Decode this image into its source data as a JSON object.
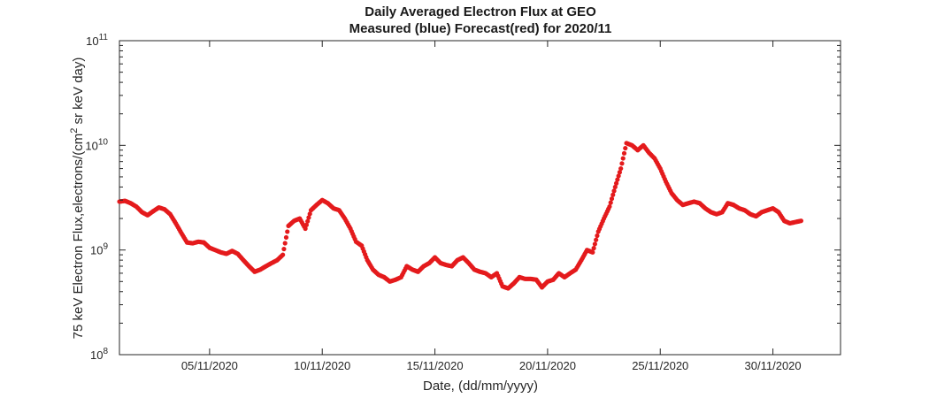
{
  "chart_data": {
    "type": "scatter",
    "title": [
      "Daily Averaged Electron Flux at GEO",
      "Measured (blue) Forecast(red) for 2020/11"
    ],
    "xlabel": "Date, (dd/mm/yyyy)",
    "ylabel": {
      "main": "75 keV Electron Flux,electrons/(cm",
      "superscript": "2",
      "rest": " sr keV day)"
    },
    "x_scale": "date",
    "y_scale": "log",
    "xlim": [
      "2020-11-01",
      "2020-12-03"
    ],
    "ylim": [
      100000000.0,
      100000000000.0
    ],
    "x_tick_labels": [
      "05/11/2020",
      "10/11/2020",
      "15/11/2020",
      "20/11/2020",
      "25/11/2020",
      "30/11/2020"
    ],
    "x_tick_dates": [
      "2020-11-05",
      "2020-11-10",
      "2020-11-15",
      "2020-11-20",
      "2020-11-25",
      "2020-11-30"
    ],
    "y_tick_labels": [
      {
        "base": "10",
        "exp": "8",
        "value": 100000000.0
      },
      {
        "base": "10",
        "exp": "9",
        "value": 1000000000.0
      },
      {
        "base": "10",
        "exp": "10",
        "value": 10000000000.0
      },
      {
        "base": "10",
        "exp": "11",
        "value": 100000000000.0
      }
    ],
    "grid": false,
    "series": [
      {
        "color": "#e41a1c",
        "points": [
          [
            "2020-11-01T00:00",
            2900000000.0
          ],
          [
            "2020-11-01T06:00",
            2950000000.0
          ],
          [
            "2020-11-01T12:00",
            2800000000.0
          ],
          [
            "2020-11-01T18:00",
            2600000000.0
          ],
          [
            "2020-11-02T00:00",
            2300000000.0
          ],
          [
            "2020-11-02T06:00",
            2150000000.0
          ],
          [
            "2020-11-02T12:00",
            2350000000.0
          ],
          [
            "2020-11-02T18:00",
            2550000000.0
          ],
          [
            "2020-11-03T00:00",
            2450000000.0
          ],
          [
            "2020-11-03T06:00",
            2200000000.0
          ],
          [
            "2020-11-03T12:00",
            1800000000.0
          ],
          [
            "2020-11-03T18:00",
            1450000000.0
          ],
          [
            "2020-11-04T00:00",
            1180000000.0
          ],
          [
            "2020-11-04T06:00",
            1160000000.0
          ],
          [
            "2020-11-04T12:00",
            1200000000.0
          ],
          [
            "2020-11-04T18:00",
            1180000000.0
          ],
          [
            "2020-11-05T00:00",
            1050000000.0
          ],
          [
            "2020-11-05T06:00",
            1000000000.0
          ],
          [
            "2020-11-05T12:00",
            950000000.0
          ],
          [
            "2020-11-05T18:00",
            920000000.0
          ],
          [
            "2020-11-06T00:00",
            980000000.0
          ],
          [
            "2020-11-06T06:00",
            920000000.0
          ],
          [
            "2020-11-06T12:00",
            800000000.0
          ],
          [
            "2020-11-06T18:00",
            700000000.0
          ],
          [
            "2020-11-07T00:00",
            620000000.0
          ],
          [
            "2020-11-07T06:00",
            650000000.0
          ],
          [
            "2020-11-07T12:00",
            700000000.0
          ],
          [
            "2020-11-07T18:00",
            750000000.0
          ],
          [
            "2020-11-08T00:00",
            800000000.0
          ],
          [
            "2020-11-08T06:00",
            900000000.0
          ],
          [
            "2020-11-08T12:00",
            1700000000.0
          ],
          [
            "2020-11-08T18:00",
            1900000000.0
          ],
          [
            "2020-11-09T00:00",
            2000000000.0
          ],
          [
            "2020-11-09T06:00",
            1600000000.0
          ],
          [
            "2020-11-09T12:00",
            2400000000.0
          ],
          [
            "2020-11-09T18:00",
            2700000000.0
          ],
          [
            "2020-11-10T00:00",
            3000000000.0
          ],
          [
            "2020-11-10T06:00",
            2800000000.0
          ],
          [
            "2020-11-10T12:00",
            2500000000.0
          ],
          [
            "2020-11-10T18:00",
            2400000000.0
          ],
          [
            "2020-11-11T00:00",
            2000000000.0
          ],
          [
            "2020-11-11T06:00",
            1600000000.0
          ],
          [
            "2020-11-11T12:00",
            1200000000.0
          ],
          [
            "2020-11-11T18:00",
            1100000000.0
          ],
          [
            "2020-11-12T00:00",
            800000000.0
          ],
          [
            "2020-11-12T06:00",
            650000000.0
          ],
          [
            "2020-11-12T12:00",
            580000000.0
          ],
          [
            "2020-11-12T18:00",
            550000000.0
          ],
          [
            "2020-11-13T00:00",
            500000000.0
          ],
          [
            "2020-11-13T06:00",
            520000000.0
          ],
          [
            "2020-11-13T12:00",
            550000000.0
          ],
          [
            "2020-11-13T18:00",
            700000000.0
          ],
          [
            "2020-11-14T00:00",
            650000000.0
          ],
          [
            "2020-11-14T06:00",
            620000000.0
          ],
          [
            "2020-11-14T12:00",
            700000000.0
          ],
          [
            "2020-11-14T18:00",
            750000000.0
          ],
          [
            "2020-11-15T00:00",
            850000000.0
          ],
          [
            "2020-11-15T06:00",
            750000000.0
          ],
          [
            "2020-11-15T12:00",
            720000000.0
          ],
          [
            "2020-11-15T18:00",
            700000000.0
          ],
          [
            "2020-11-16T00:00",
            800000000.0
          ],
          [
            "2020-11-16T06:00",
            850000000.0
          ],
          [
            "2020-11-16T12:00",
            750000000.0
          ],
          [
            "2020-11-16T18:00",
            650000000.0
          ],
          [
            "2020-11-17T00:00",
            620000000.0
          ],
          [
            "2020-11-17T06:00",
            600000000.0
          ],
          [
            "2020-11-17T12:00",
            550000000.0
          ],
          [
            "2020-11-17T18:00",
            600000000.0
          ],
          [
            "2020-11-18T00:00",
            450000000.0
          ],
          [
            "2020-11-18T06:00",
            430000000.0
          ],
          [
            "2020-11-18T12:00",
            480000000.0
          ],
          [
            "2020-11-18T18:00",
            550000000.0
          ],
          [
            "2020-11-19T00:00",
            530000000.0
          ],
          [
            "2020-11-19T06:00",
            530000000.0
          ],
          [
            "2020-11-19T12:00",
            520000000.0
          ],
          [
            "2020-11-19T18:00",
            440000000.0
          ],
          [
            "2020-11-20T00:00",
            500000000.0
          ],
          [
            "2020-11-20T06:00",
            520000000.0
          ],
          [
            "2020-11-20T12:00",
            600000000.0
          ],
          [
            "2020-11-20T18:00",
            550000000.0
          ],
          [
            "2020-11-21T00:00",
            600000000.0
          ],
          [
            "2020-11-21T06:00",
            650000000.0
          ],
          [
            "2020-11-21T12:00",
            800000000.0
          ],
          [
            "2020-11-21T18:00",
            1000000000.0
          ],
          [
            "2020-11-22T00:00",
            950000000.0
          ],
          [
            "2020-11-22T06:00",
            1500000000.0
          ],
          [
            "2020-11-22T12:00",
            2000000000.0
          ],
          [
            "2020-11-22T18:00",
            2600000000.0
          ],
          [
            "2020-11-23T00:00",
            4000000000.0
          ],
          [
            "2020-11-23T06:00",
            6000000000.0
          ],
          [
            "2020-11-23T12:00",
            10500000000.0
          ],
          [
            "2020-11-23T18:00",
            10000000000.0
          ],
          [
            "2020-11-24T00:00",
            9000000000.0
          ],
          [
            "2020-11-24T06:00",
            10000000000.0
          ],
          [
            "2020-11-24T12:00",
            8500000000.0
          ],
          [
            "2020-11-24T18:00",
            7500000000.0
          ],
          [
            "2020-11-25T00:00",
            6000000000.0
          ],
          [
            "2020-11-25T06:00",
            4500000000.0
          ],
          [
            "2020-11-25T12:00",
            3500000000.0
          ],
          [
            "2020-11-25T18:00",
            3000000000.0
          ],
          [
            "2020-11-26T00:00",
            2700000000.0
          ],
          [
            "2020-11-26T06:00",
            2800000000.0
          ],
          [
            "2020-11-26T12:00",
            2900000000.0
          ],
          [
            "2020-11-26T18:00",
            2800000000.0
          ],
          [
            "2020-11-27T00:00",
            2500000000.0
          ],
          [
            "2020-11-27T06:00",
            2300000000.0
          ],
          [
            "2020-11-27T12:00",
            2200000000.0
          ],
          [
            "2020-11-27T18:00",
            2300000000.0
          ],
          [
            "2020-11-28T00:00",
            2800000000.0
          ],
          [
            "2020-11-28T06:00",
            2700000000.0
          ],
          [
            "2020-11-28T12:00",
            2500000000.0
          ],
          [
            "2020-11-28T18:00",
            2400000000.0
          ],
          [
            "2020-11-29T00:00",
            2200000000.0
          ],
          [
            "2020-11-29T06:00",
            2100000000.0
          ],
          [
            "2020-11-29T12:00",
            2300000000.0
          ],
          [
            "2020-11-29T18:00",
            2400000000.0
          ],
          [
            "2020-11-30T00:00",
            2500000000.0
          ],
          [
            "2020-11-30T06:00",
            2300000000.0
          ],
          [
            "2020-11-30T12:00",
            1900000000.0
          ],
          [
            "2020-11-30T18:00",
            1800000000.0
          ],
          [
            "2020-12-01T00:00",
            1850000000.0
          ],
          [
            "2020-12-01T06:00",
            1900000000.0
          ]
        ]
      }
    ]
  }
}
